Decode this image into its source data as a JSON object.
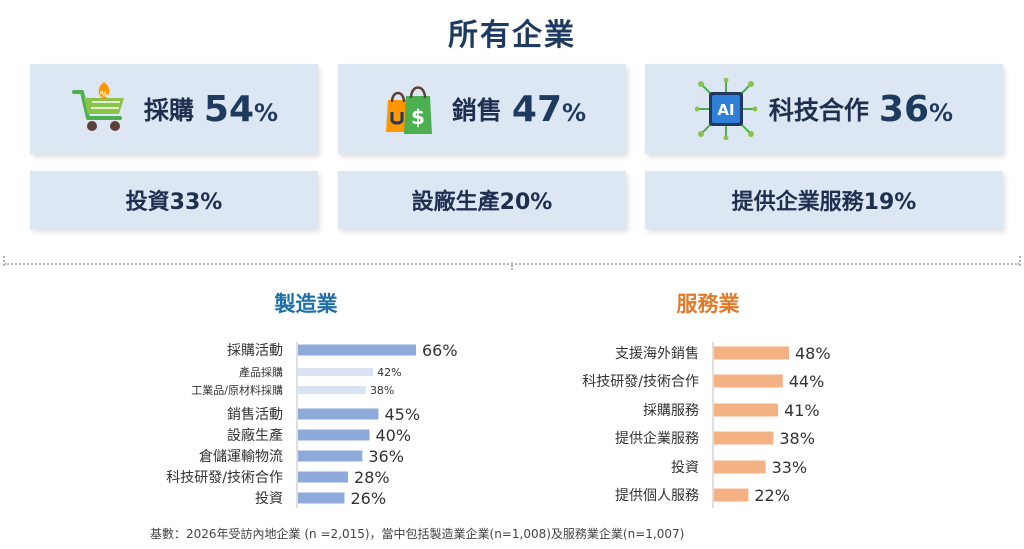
{
  "title": "所有企業",
  "top_cards": [
    {
      "label": "採購",
      "value": "54",
      "unit": "%",
      "icon": "shopping-cart-icon"
    },
    {
      "label": "銷售",
      "value": "47",
      "unit": "%",
      "icon": "shopping-bags-icon"
    },
    {
      "label": "科技合作",
      "value": "36",
      "unit": "%",
      "icon": "ai-chip-icon"
    }
  ],
  "sub_cards": [
    {
      "label": "投資33%"
    },
    {
      "label": "設廠生產20%"
    },
    {
      "label": "提供企業服務19%"
    }
  ],
  "colors": {
    "card_bg": "#dde7f3",
    "title": "#1e3a5f",
    "manufacturing_title": "#1f6fa8",
    "services_title": "#e07b2a",
    "manufacturing_bar": "#8eaadb",
    "manufacturing_sub_bar": "#dae3f3",
    "services_bar": "#f4b183"
  },
  "chart_data": [
    {
      "type": "bar",
      "orientation": "horizontal",
      "title": "製造業",
      "categories": [
        "採購活動",
        "產品採購",
        "工業品/原材料採購",
        "銷售活動",
        "設廠生產",
        "倉儲運輸物流",
        "科技研發/技術合作",
        "投資"
      ],
      "values": [
        66,
        42,
        38,
        45,
        40,
        36,
        28,
        26
      ],
      "labels": [
        "66%",
        "42%",
        "38%",
        "45%",
        "40%",
        "36%",
        "28%",
        "26%"
      ],
      "sub_items": [
        false,
        true,
        true,
        false,
        false,
        false,
        false,
        false
      ],
      "unit": "%"
    },
    {
      "type": "bar",
      "orientation": "horizontal",
      "title": "服務業",
      "categories": [
        "支援海外銷售",
        "科技研發/技術合作",
        "採購服務",
        "提供企業服務",
        "投資",
        "提供個人服務"
      ],
      "values": [
        48,
        44,
        41,
        38,
        33,
        22
      ],
      "labels": [
        "48%",
        "44%",
        "41%",
        "38%",
        "33%",
        "22%"
      ],
      "unit": "%"
    }
  ],
  "footnote": "基數：2026年受訪內地企業 (n =2,015)，當中包括製造業企業(n=1,008)及服務業企業(n=1,007)"
}
